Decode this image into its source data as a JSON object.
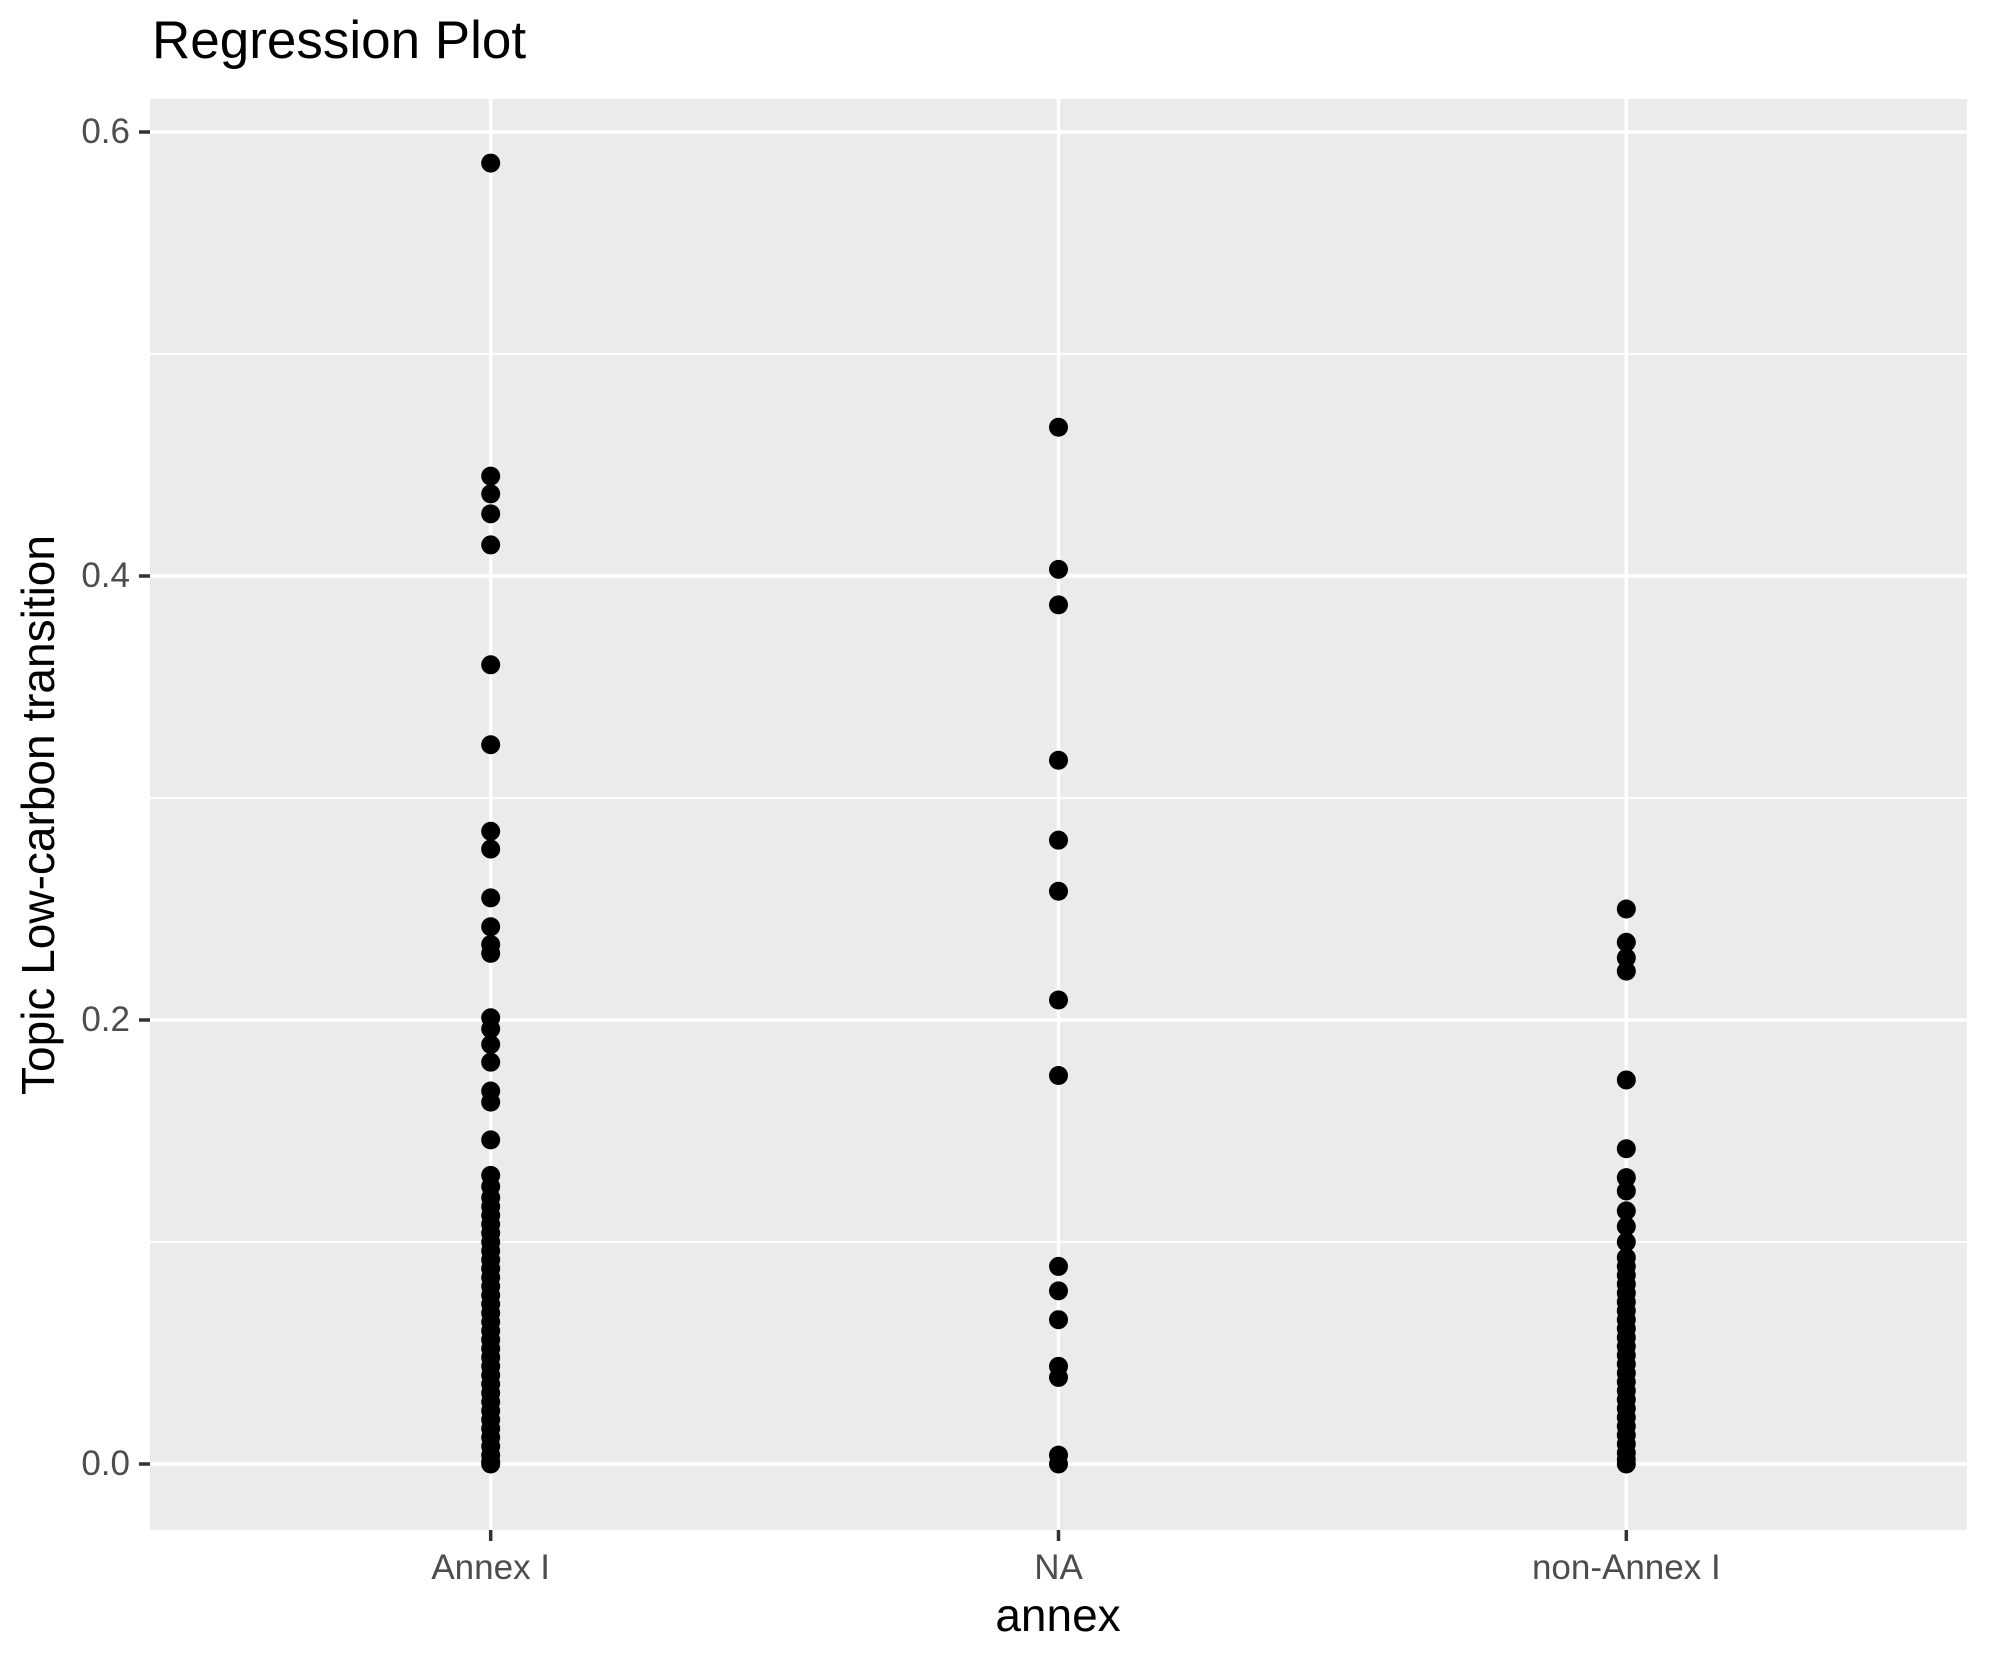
{
  "title": "Regression Plot",
  "chart_data": {
    "type": "scatter",
    "title": "Regression Plot",
    "xlabel": "annex",
    "ylabel": "Topic Low-carbon transition",
    "categories": [
      "Annex I",
      "NA",
      "non-Annex I"
    ],
    "y_ticks": [
      0.0,
      0.2,
      0.4,
      0.6
    ],
    "y_tick_labels": [
      "0.0",
      "0.2",
      "0.4",
      "0.6"
    ],
    "y_minor_ticks": [
      0.1,
      0.3,
      0.5
    ],
    "ylim": [
      -0.03,
      0.614
    ],
    "grid": "white major+minor horizontal lines, white major vertical line at each category",
    "legend": "none",
    "style": {
      "panel_background": "#EBEBEB",
      "gridline_color": "#FFFFFF",
      "point_color": "#000000",
      "tick_label_color": "#4D4D4D",
      "axis_title_color": "#000000",
      "title_color": "#000000",
      "tick_mark_color": "#333333"
    },
    "series": [
      {
        "name": "Annex I",
        "values": [
          0.586,
          0.445,
          0.437,
          0.428,
          0.414,
          0.36,
          0.324,
          0.285,
          0.277,
          0.255,
          0.242,
          0.234,
          0.23,
          0.201,
          0.196,
          0.189,
          0.181,
          0.168,
          0.163,
          0.146,
          0.13,
          0.125,
          0.12,
          0.116,
          0.112,
          0.108,
          0.104,
          0.1,
          0.096,
          0.092,
          0.088,
          0.084,
          0.08,
          0.076,
          0.072,
          0.068,
          0.064,
          0.06,
          0.056,
          0.052,
          0.048,
          0.044,
          0.04,
          0.036,
          0.032,
          0.028,
          0.024,
          0.02,
          0.016,
          0.012,
          0.008,
          0.004,
          0.001,
          0.0
        ]
      },
      {
        "name": "NA",
        "values": [
          0.467,
          0.403,
          0.387,
          0.317,
          0.281,
          0.258,
          0.209,
          0.175,
          0.089,
          0.078,
          0.065,
          0.044,
          0.039,
          0.004,
          0.0
        ]
      },
      {
        "name": "non-Annex I",
        "values": [
          0.25,
          0.235,
          0.228,
          0.222,
          0.173,
          0.142,
          0.129,
          0.123,
          0.114,
          0.107,
          0.1,
          0.093,
          0.089,
          0.085,
          0.081,
          0.077,
          0.073,
          0.069,
          0.065,
          0.061,
          0.057,
          0.053,
          0.049,
          0.045,
          0.041,
          0.037,
          0.033,
          0.029,
          0.025,
          0.021,
          0.017,
          0.013,
          0.009,
          0.005,
          0.002,
          0.0
        ]
      }
    ]
  }
}
